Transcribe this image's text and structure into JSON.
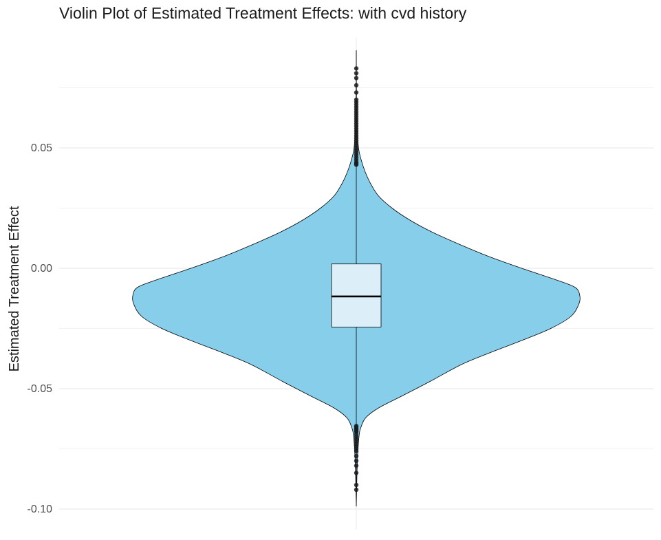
{
  "chart_data": {
    "type": "violin",
    "title": "Violin Plot of Estimated Treatment Effects: with cvd history",
    "xlabel": "",
    "ylabel": "Estimated Treatment Effect",
    "ylim": [
      -0.1,
      0.1
    ],
    "y_ticks": [
      -0.1,
      -0.05,
      0.0,
      0.05
    ],
    "y_tick_labels": [
      "-0.10",
      "-0.05",
      "0.00",
      "0.05"
    ],
    "grid": true,
    "violin_color": "#87CEEB",
    "box_color": "#DCEEF8",
    "density_profile": [
      {
        "y": -0.0989,
        "w": 0.0
      },
      {
        "y": -0.09,
        "w": 0.002
      },
      {
        "y": -0.08,
        "w": 0.005
      },
      {
        "y": -0.07,
        "w": 0.012
      },
      {
        "y": -0.066,
        "w": 0.021
      },
      {
        "y": -0.062,
        "w": 0.043
      },
      {
        "y": -0.058,
        "w": 0.1
      },
      {
        "y": -0.053,
        "w": 0.205
      },
      {
        "y": -0.047,
        "w": 0.33
      },
      {
        "y": -0.04,
        "w": 0.47
      },
      {
        "y": -0.035,
        "w": 0.6
      },
      {
        "y": -0.03,
        "w": 0.74
      },
      {
        "y": -0.025,
        "w": 0.87
      },
      {
        "y": -0.02,
        "w": 0.96
      },
      {
        "y": -0.015,
        "w": 0.995
      },
      {
        "y": -0.0115,
        "w": 1.0
      },
      {
        "y": -0.008,
        "w": 0.98
      },
      {
        "y": -0.005,
        "w": 0.9
      },
      {
        "y": 0.0,
        "w": 0.74
      },
      {
        "y": 0.005,
        "w": 0.59
      },
      {
        "y": 0.01,
        "w": 0.46
      },
      {
        "y": 0.015,
        "w": 0.34
      },
      {
        "y": 0.02,
        "w": 0.24
      },
      {
        "y": 0.025,
        "w": 0.16
      },
      {
        "y": 0.03,
        "w": 0.1
      },
      {
        "y": 0.035,
        "w": 0.065
      },
      {
        "y": 0.04,
        "w": 0.04
      },
      {
        "y": 0.045,
        "w": 0.022
      },
      {
        "y": 0.05,
        "w": 0.01
      },
      {
        "y": 0.06,
        "w": 0.003
      },
      {
        "y": 0.07,
        "w": 0.001
      },
      {
        "y": 0.0905,
        "w": 0.0
      }
    ],
    "box": {
      "median": -0.0117,
      "q1": -0.0244,
      "q3": 0.0018,
      "whisker_low": -0.0645,
      "whisker_high": 0.0425,
      "y_min": -0.0989,
      "y_max": 0.0905
    },
    "outliers": [
      -0.092,
      -0.09,
      -0.085,
      -0.082,
      -0.08,
      -0.078,
      -0.076,
      -0.075,
      -0.074,
      -0.073,
      -0.072,
      -0.071,
      -0.07,
      -0.069,
      -0.068,
      -0.0675,
      -0.067,
      -0.0665,
      -0.066,
      -0.0655,
      0.043,
      0.0435,
      0.044,
      0.045,
      0.046,
      0.047,
      0.048,
      0.049,
      0.05,
      0.051,
      0.052,
      0.053,
      0.054,
      0.055,
      0.056,
      0.057,
      0.058,
      0.059,
      0.06,
      0.061,
      0.062,
      0.063,
      0.064,
      0.065,
      0.066,
      0.067,
      0.068,
      0.069,
      0.07,
      0.073,
      0.076,
      0.079,
      0.081,
      0.083
    ]
  }
}
